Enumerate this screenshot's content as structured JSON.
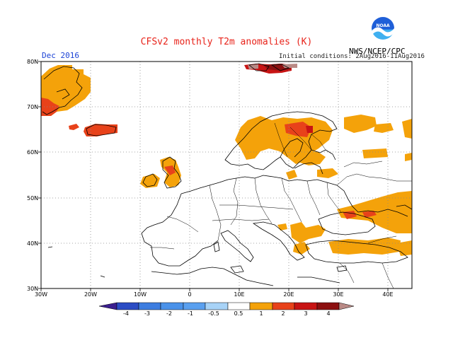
{
  "header": {
    "title": "CFSv2 monthly T2m anomalies (K)",
    "month": "Dec 2016",
    "initial_conditions": "Initial conditions: 2Aug2016-11Aug2016",
    "agency": "NWS/NCEP/CPC",
    "logo_text": "NOAA"
  },
  "axes": {
    "lat_labels": [
      "80N",
      "70N",
      "60N",
      "50N",
      "40N",
      "30N"
    ],
    "lon_labels": [
      "30W",
      "20W",
      "10W",
      "0",
      "10E",
      "20E",
      "30E",
      "40E"
    ]
  },
  "colorbar": {
    "labels": [
      "-4",
      "-3",
      "-2",
      "-1",
      "-0.5",
      "0.5",
      "1",
      "2",
      "3",
      "4"
    ],
    "colors": [
      "#3b1f8f",
      "#2b4cc4",
      "#3d7de0",
      "#5aa0ef",
      "#a8d3f7",
      "#ffffff",
      "#f4a20a",
      "#e8421a",
      "#c81414",
      "#8c1010",
      "#b98a86"
    ]
  },
  "colors": {
    "orange": "#f4a20a",
    "red_orange": "#e8421a",
    "red": "#c81414",
    "dark_red": "#8c1010",
    "rose": "#b98a86"
  }
}
